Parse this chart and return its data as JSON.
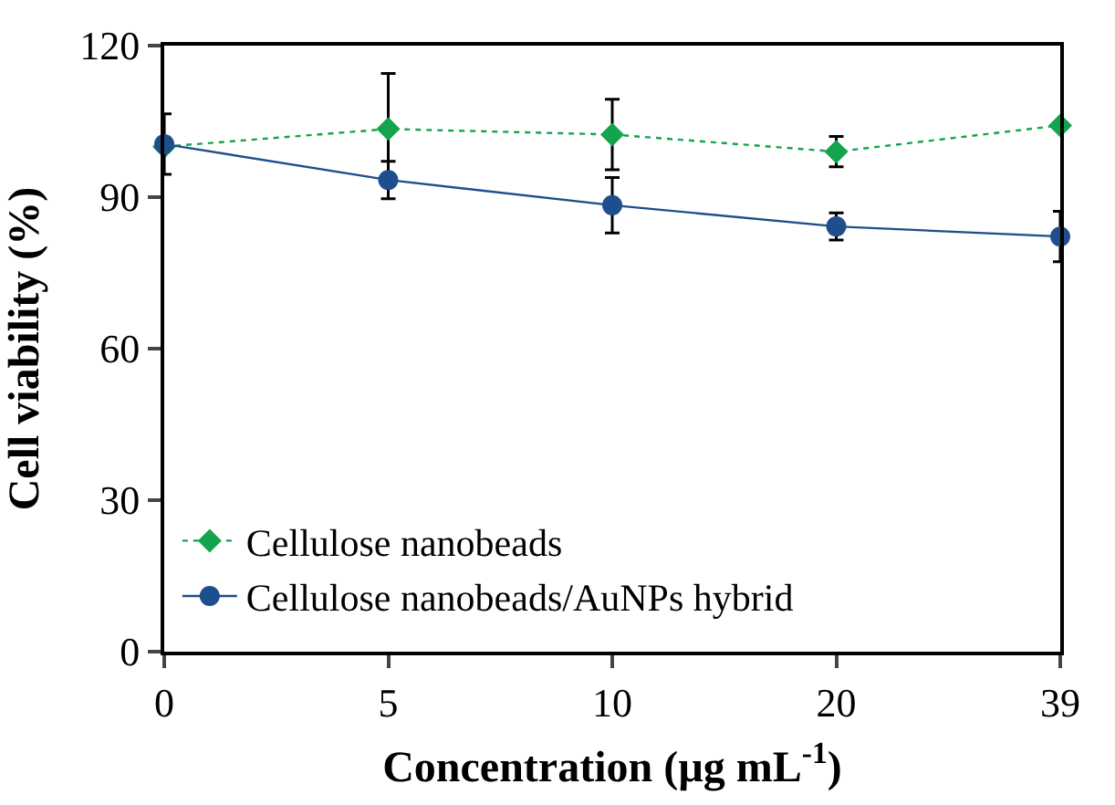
{
  "chart_data": {
    "type": "line",
    "xlabel": "Concentration (µg mL$^{-1}$)",
    "ylabel": "Cell viability (%)",
    "categories": [
      "0",
      "5",
      "10",
      "20",
      "39"
    ],
    "series": [
      {
        "name": "Cellulose nanobeads",
        "color": "#14a44d",
        "values": [
          100,
          103.5,
          102.4,
          99,
          104.2
        ],
        "errors": [
          null,
          11,
          7,
          3,
          null
        ],
        "marker": "diamond",
        "line_style": "dotted"
      },
      {
        "name": "Cellulose nanobeads/AuNPs hybrid",
        "color": "#1f4e8c",
        "values": [
          100.5,
          93.4,
          88.4,
          84.2,
          82.2
        ],
        "errors": [
          6,
          3.7,
          5.5,
          2.7,
          5
        ],
        "marker": "circle",
        "line_style": "solid"
      }
    ],
    "ylim": [
      0,
      120
    ],
    "yticks": [
      0,
      30,
      60,
      90,
      120
    ],
    "legend": "bottom left"
  }
}
